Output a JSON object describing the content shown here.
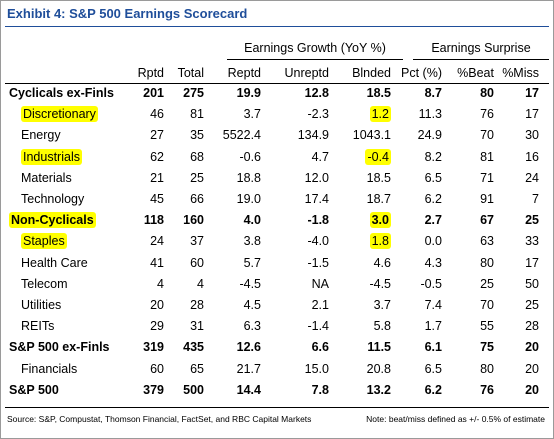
{
  "header": {
    "title": "Exhibit 4: S&P 500 Earnings Scorecard"
  },
  "table": {
    "groups": [
      {
        "label": "Earnings Growth (YoY %)"
      },
      {
        "label": "Earnings Surprise"
      }
    ],
    "columns": [
      "Rptd",
      "Total",
      "Reptd",
      "Unreptd",
      "Blnded",
      "Pct (%)",
      "%Beat",
      "%Miss"
    ],
    "rows": [
      {
        "bold": true,
        "highlight": [],
        "cells": [
          "Cyclicals ex-Finls",
          "201",
          "275",
          "19.9",
          "12.8",
          "18.5",
          "8.7",
          "80",
          "17"
        ]
      },
      {
        "bold": false,
        "highlight": [
          0,
          5
        ],
        "cells": [
          "Discretionary",
          "46",
          "81",
          "3.7",
          "-2.3",
          "1.2",
          "11.3",
          "76",
          "17"
        ]
      },
      {
        "bold": false,
        "highlight": [],
        "cells": [
          "Energy",
          "27",
          "35",
          "5522.4",
          "134.9",
          "1043.1",
          "24.9",
          "70",
          "30"
        ]
      },
      {
        "bold": false,
        "highlight": [
          0,
          5
        ],
        "cells": [
          "Industrials",
          "62",
          "68",
          "-0.6",
          "4.7",
          "-0.4",
          "8.2",
          "81",
          "16"
        ]
      },
      {
        "bold": false,
        "highlight": [],
        "cells": [
          "Materials",
          "21",
          "25",
          "18.8",
          "12.0",
          "18.5",
          "6.5",
          "71",
          "24"
        ]
      },
      {
        "bold": false,
        "highlight": [],
        "cells": [
          "Technology",
          "45",
          "66",
          "19.0",
          "17.4",
          "18.7",
          "6.2",
          "91",
          "7"
        ]
      },
      {
        "bold": true,
        "highlight": [
          0,
          5
        ],
        "cells": [
          "Non-Cyclicals",
          "118",
          "160",
          "4.0",
          "-1.8",
          "3.0",
          "2.7",
          "67",
          "25"
        ]
      },
      {
        "bold": false,
        "highlight": [
          0,
          5
        ],
        "cells": [
          "Staples",
          "24",
          "37",
          "3.8",
          "-4.0",
          "1.8",
          "0.0",
          "63",
          "33"
        ]
      },
      {
        "bold": false,
        "highlight": [],
        "cells": [
          "Health Care",
          "41",
          "60",
          "5.7",
          "-1.5",
          "4.6",
          "4.3",
          "80",
          "17"
        ]
      },
      {
        "bold": false,
        "highlight": [],
        "cells": [
          "Telecom",
          "4",
          "4",
          "-4.5",
          "NA",
          "-4.5",
          "-0.5",
          "25",
          "50"
        ]
      },
      {
        "bold": false,
        "highlight": [],
        "cells": [
          "Utilities",
          "20",
          "28",
          "4.5",
          "2.1",
          "3.7",
          "7.4",
          "70",
          "25"
        ]
      },
      {
        "bold": false,
        "highlight": [],
        "cells": [
          "REITs",
          "29",
          "31",
          "6.3",
          "-1.4",
          "5.8",
          "1.7",
          "55",
          "28"
        ]
      },
      {
        "bold": true,
        "highlight": [],
        "cells": [
          "S&P 500 ex-Finls",
          "319",
          "435",
          "12.6",
          "6.6",
          "11.5",
          "6.1",
          "75",
          "20"
        ]
      },
      {
        "bold": false,
        "highlight": [],
        "cells": [
          "Financials",
          "60",
          "65",
          "21.7",
          "15.0",
          "20.8",
          "6.5",
          "80",
          "20"
        ]
      },
      {
        "bold": true,
        "highlight": [],
        "cells": [
          "S&P 500",
          "379",
          "500",
          "14.4",
          "7.8",
          "13.2",
          "6.2",
          "76",
          "20"
        ]
      }
    ]
  },
  "footer": {
    "source": "Source: S&P, Compustat, Thomson Financial, FactSet, and RBC Capital Markets",
    "note": "Note: beat/miss defined as +/- 0.5% of estimate"
  }
}
